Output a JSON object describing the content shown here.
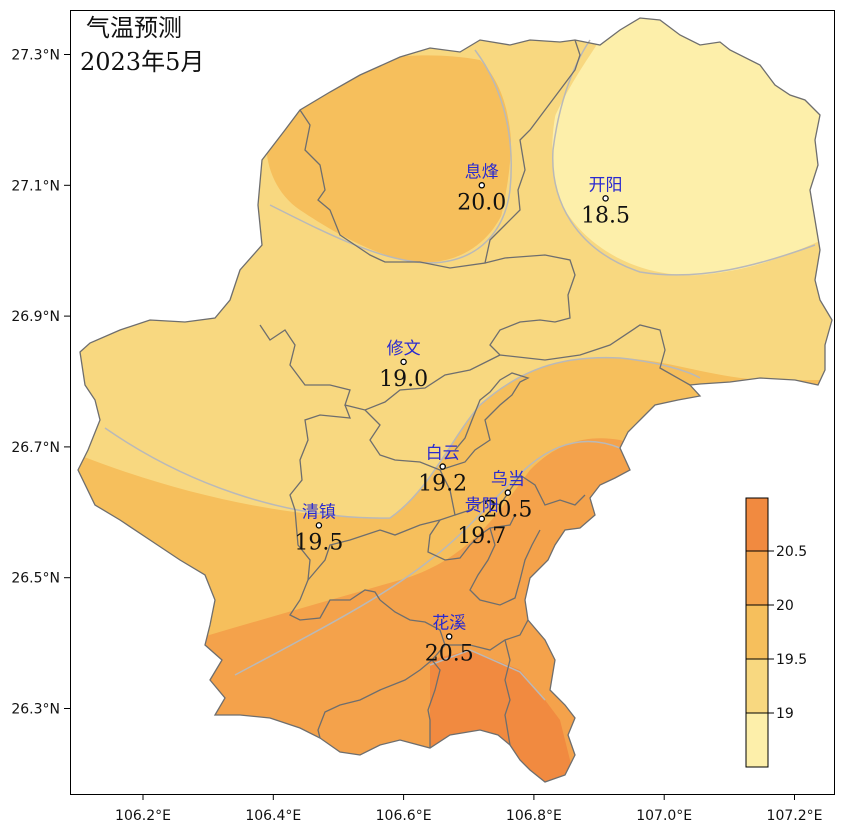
{
  "title": {
    "line1": "气温预测",
    "line2": "2023年5月"
  },
  "axes": {
    "x_ticks": [
      "106.2°E",
      "106.4°E",
      "106.6°E",
      "106.8°E",
      "107.0°E",
      "107.2°E"
    ],
    "y_ticks": [
      "27.3°N",
      "27.1°N",
      "26.9°N",
      "26.7°N",
      "26.5°N",
      "26.3°N"
    ]
  },
  "colors": {
    "c18": "#fdefaa",
    "c19": "#f8d880",
    "c195": "#f6bf5c",
    "c20": "#f4a24b",
    "c205": "#f18a40",
    "border": "#6e6e6e",
    "label": "#2a2ad0"
  },
  "colorbar": {
    "labels": [
      "20.5",
      "20",
      "19.5",
      "19"
    ],
    "levels": [
      20.5,
      20,
      19.5,
      19
    ]
  },
  "cities": [
    {
      "name": "息烽",
      "value": "20.0",
      "lon": 106.72,
      "lat": 27.1
    },
    {
      "name": "开阳",
      "value": "18.5",
      "lon": 106.91,
      "lat": 27.08
    },
    {
      "name": "修文",
      "value": "19.0",
      "lon": 106.6,
      "lat": 26.83
    },
    {
      "name": "白云",
      "value": "19.2",
      "lon": 106.66,
      "lat": 26.67
    },
    {
      "name": "乌当",
      "value": "20.5",
      "lon": 106.76,
      "lat": 26.63
    },
    {
      "name": "贵阳",
      "value": "19.7",
      "lon": 106.72,
      "lat": 26.59
    },
    {
      "name": "清镇",
      "value": "19.5",
      "lon": 106.47,
      "lat": 26.58
    },
    {
      "name": "花溪",
      "value": "20.5",
      "lon": 106.67,
      "lat": 26.41
    }
  ]
}
